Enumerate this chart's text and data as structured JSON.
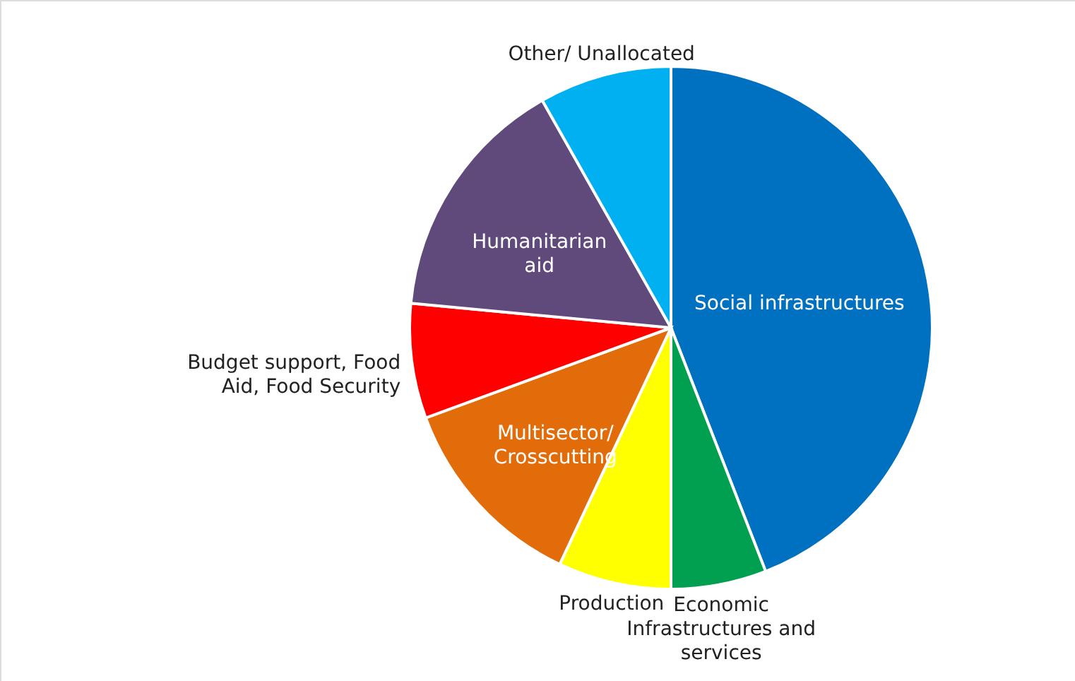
{
  "chart_data": {
    "type": "pie",
    "categories": [
      "Social infrastructures",
      "Economic Infrastructures and services",
      "Production",
      "Multisector/ Crosscutting",
      "Budget support, Food Aid, Food Security",
      "Humanitarian aid",
      "Other/ Unallocated"
    ],
    "values": [
      44.1,
      5.9,
      7,
      12.4,
      7.1,
      15.3,
      8.2
    ],
    "colors": [
      "#0070c0",
      "#00a050",
      "#ffff00",
      "#e36c0a",
      "#ff0000",
      "#604a7b",
      "#00b0f0"
    ]
  }
}
